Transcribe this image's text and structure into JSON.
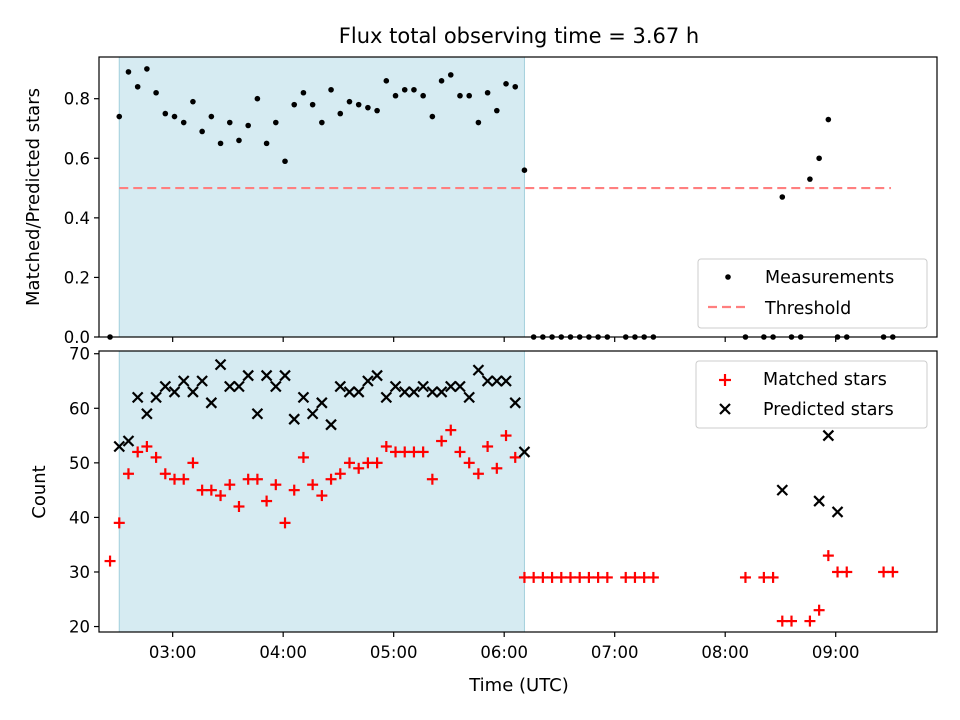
{
  "chart_data": [
    {
      "type": "scatter",
      "title": "Flux total observing time = 3.67 h",
      "xlabel": "",
      "ylabel": "Matched/Predicted stars",
      "xlim": [
        "02:20",
        "09:55"
      ],
      "ylim": [
        0,
        0.94
      ],
      "yticks": [
        "0.0",
        "0.2",
        "0.4",
        "0.6",
        "0.8"
      ],
      "shaded_span": [
        "02:31",
        "06:11"
      ],
      "threshold": {
        "value": 0.5,
        "from": "02:31",
        "to": "09:30",
        "color": "#ff7f7f"
      },
      "legend": {
        "placement": "lower right",
        "entries": [
          "Measurements",
          "Threshold"
        ]
      },
      "series": [
        {
          "name": "Measurements",
          "color": "#000000",
          "x": [
            "02:26",
            "02:31",
            "02:36",
            "02:41",
            "02:46",
            "02:51",
            "02:56",
            "03:01",
            "03:06",
            "03:11",
            "03:16",
            "03:21",
            "03:26",
            "03:31",
            "03:36",
            "03:41",
            "03:46",
            "03:51",
            "03:56",
            "04:01",
            "04:06",
            "04:11",
            "04:16",
            "04:21",
            "04:26",
            "04:31",
            "04:36",
            "04:41",
            "04:46",
            "04:51",
            "04:56",
            "05:01",
            "05:06",
            "05:11",
            "05:16",
            "05:21",
            "05:26",
            "05:31",
            "05:36",
            "05:41",
            "05:46",
            "05:51",
            "05:56",
            "06:01",
            "06:06",
            "06:11",
            "06:16",
            "06:21",
            "06:26",
            "06:31",
            "06:36",
            "06:41",
            "06:46",
            "06:51",
            "06:56",
            "07:06",
            "07:11",
            "07:16",
            "07:21",
            "08:11",
            "08:21",
            "08:26",
            "08:31",
            "08:36",
            "08:41",
            "08:46",
            "08:51",
            "08:56",
            "09:01",
            "09:06",
            "09:26",
            "09:31"
          ],
          "y": [
            0.0,
            0.74,
            0.89,
            0.84,
            0.9,
            0.82,
            0.75,
            0.74,
            0.72,
            0.79,
            0.69,
            0.74,
            0.65,
            0.72,
            0.66,
            0.71,
            0.8,
            0.65,
            0.72,
            0.59,
            0.78,
            0.82,
            0.78,
            0.72,
            0.83,
            0.75,
            0.79,
            0.78,
            0.77,
            0.76,
            0.86,
            0.81,
            0.83,
            0.83,
            0.81,
            0.74,
            0.86,
            0.88,
            0.81,
            0.81,
            0.72,
            0.82,
            0.76,
            0.85,
            0.84,
            0.56,
            0.0,
            0.0,
            0.0,
            0.0,
            0.0,
            0.0,
            0.0,
            0.0,
            0.0,
            0.0,
            0.0,
            0.0,
            0.0,
            0.0,
            0.0,
            0.0,
            0.47,
            0.0,
            0.0,
            0.53,
            0.6,
            0.73,
            0.0,
            0.0,
            0.0,
            0.0
          ]
        }
      ]
    },
    {
      "type": "scatter",
      "title": "",
      "xlabel": "Time (UTC)",
      "ylabel": "Count",
      "xlim": [
        "02:20",
        "09:55"
      ],
      "ylim": [
        19,
        70.5
      ],
      "xticks": [
        "03:00",
        "04:00",
        "05:00",
        "06:00",
        "07:00",
        "08:00",
        "09:00"
      ],
      "yticks": [
        "20",
        "30",
        "40",
        "50",
        "60",
        "70"
      ],
      "shaded_span": [
        "02:31",
        "06:11"
      ],
      "legend": {
        "placement": "upper right",
        "entries": [
          "Matched stars",
          "Predicted stars"
        ]
      },
      "series": [
        {
          "name": "Matched stars",
          "marker": "+",
          "color": "#ff0000",
          "x": [
            "02:26",
            "02:31",
            "02:36",
            "02:41",
            "02:46",
            "02:51",
            "02:56",
            "03:01",
            "03:06",
            "03:11",
            "03:16",
            "03:21",
            "03:26",
            "03:31",
            "03:36",
            "03:41",
            "03:46",
            "03:51",
            "03:56",
            "04:01",
            "04:06",
            "04:11",
            "04:16",
            "04:21",
            "04:26",
            "04:31",
            "04:36",
            "04:41",
            "04:46",
            "04:51",
            "04:56",
            "05:01",
            "05:06",
            "05:11",
            "05:16",
            "05:21",
            "05:26",
            "05:31",
            "05:36",
            "05:41",
            "05:46",
            "05:51",
            "05:56",
            "06:01",
            "06:06",
            "06:11",
            "06:16",
            "06:21",
            "06:26",
            "06:31",
            "06:36",
            "06:41",
            "06:46",
            "06:51",
            "06:56",
            "07:06",
            "07:11",
            "07:16",
            "07:21",
            "08:11",
            "08:21",
            "08:26",
            "08:31",
            "08:36",
            "08:46",
            "08:51",
            "08:56",
            "09:01",
            "09:06",
            "09:26",
            "09:31"
          ],
          "y": [
            32,
            39,
            48,
            52,
            53,
            51,
            48,
            47,
            47,
            50,
            45,
            45,
            44,
            46,
            42,
            47,
            47,
            43,
            46,
            39,
            45,
            51,
            46,
            44,
            47,
            48,
            50,
            49,
            50,
            50,
            53,
            52,
            52,
            52,
            52,
            47,
            54,
            56,
            52,
            50,
            48,
            53,
            49,
            55,
            51,
            29,
            29,
            29,
            29,
            29,
            29,
            29,
            29,
            29,
            29,
            29,
            29,
            29,
            29,
            29,
            29,
            29,
            21,
            21,
            21,
            23,
            33,
            30,
            30,
            30,
            30
          ]
        },
        {
          "name": "Predicted stars",
          "marker": "x",
          "color": "#000000",
          "x": [
            "02:31",
            "02:36",
            "02:41",
            "02:46",
            "02:51",
            "02:56",
            "03:01",
            "03:06",
            "03:11",
            "03:16",
            "03:21",
            "03:26",
            "03:31",
            "03:36",
            "03:41",
            "03:46",
            "03:51",
            "03:56",
            "04:01",
            "04:06",
            "04:11",
            "04:16",
            "04:21",
            "04:26",
            "04:31",
            "04:36",
            "04:41",
            "04:46",
            "04:51",
            "04:56",
            "05:01",
            "05:06",
            "05:11",
            "05:16",
            "05:21",
            "05:26",
            "05:31",
            "05:36",
            "05:41",
            "05:46",
            "05:51",
            "05:56",
            "06:01",
            "06:06",
            "06:11",
            "08:31",
            "08:51",
            "08:56",
            "09:01"
          ],
          "y": [
            53,
            54,
            62,
            59,
            62,
            64,
            63,
            65,
            63,
            65,
            61,
            68,
            64,
            64,
            66,
            59,
            66,
            64,
            66,
            58,
            62,
            59,
            61,
            57,
            64,
            63,
            63,
            65,
            66,
            62,
            64,
            63,
            63,
            64,
            63,
            63,
            64,
            64,
            62,
            67,
            65,
            65,
            65,
            61,
            52,
            45,
            43,
            55,
            41
          ]
        }
      ]
    }
  ]
}
